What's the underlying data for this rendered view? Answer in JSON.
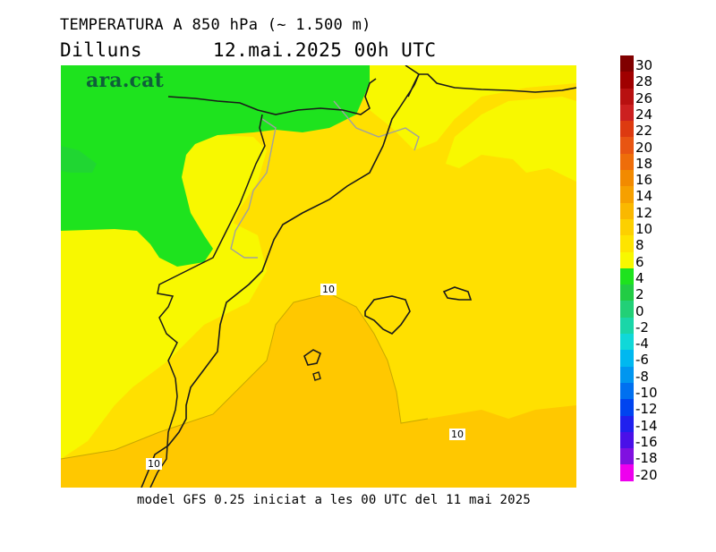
{
  "header": {
    "title": "TEMPERATURA A 850 hPa (~ 1.500 m)",
    "subtitle": "Dilluns      12.mai.2025 00h UTC"
  },
  "map": {
    "brand": "ara.cat",
    "contour_labels": [
      "10",
      "10",
      "10"
    ],
    "colors": {
      "green": "#1ee31e",
      "yellow_light": "#f8f800",
      "yellow": "#ffe000",
      "orange_light": "#ffc800",
      "coastline": "#1a1a1a",
      "border": "#a0a0a0"
    }
  },
  "footer": {
    "text": "model GFS 0.25 iniciat a les 00 UTC del 11 mai 2025"
  },
  "colorbar": {
    "labels": [
      "30",
      "28",
      "26",
      "24",
      "22",
      "20",
      "18",
      "16",
      "14",
      "12",
      "10",
      "8",
      "6",
      "4",
      "2",
      "0",
      "-2",
      "-4",
      "-6",
      "-8",
      "-10",
      "-12",
      "-14",
      "-16",
      "-18",
      "-20"
    ],
    "colors": [
      "#800000",
      "#a00000",
      "#b81010",
      "#cc2020",
      "#dd3a10",
      "#e85512",
      "#ee6d0a",
      "#f28a00",
      "#f6a000",
      "#fab800",
      "#fdd000",
      "#fee400",
      "#f8f800",
      "#1ee31e",
      "#22cc44",
      "#22d077",
      "#1ad6a8",
      "#10d8d8",
      "#00b8f0",
      "#0096f0",
      "#0070f0",
      "#0044f0",
      "#2020ee",
      "#4a10e8",
      "#8010e0",
      "#ee00ee"
    ]
  }
}
